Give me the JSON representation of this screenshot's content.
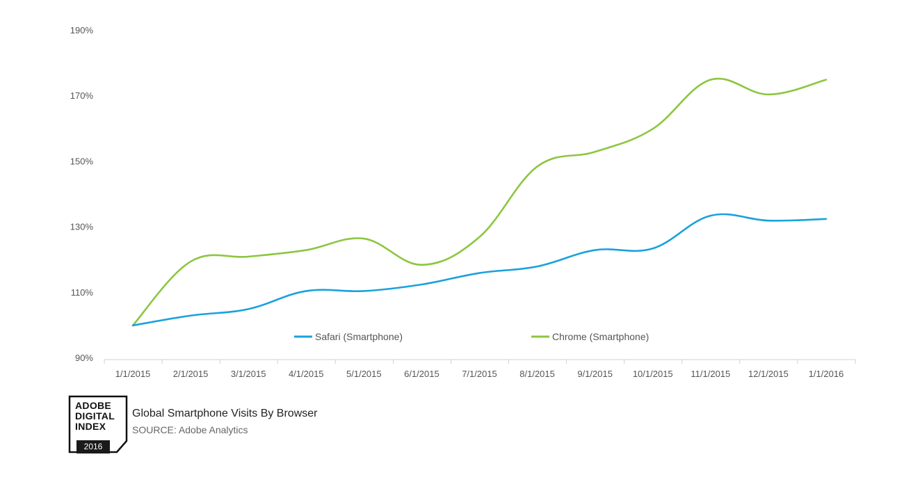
{
  "chart_data": {
    "type": "line",
    "categories": [
      "1/1/2015",
      "2/1/2015",
      "3/1/2015",
      "4/1/2015",
      "5/1/2015",
      "6/1/2015",
      "7/1/2015",
      "8/1/2015",
      "9/1/2015",
      "10/1/2015",
      "11/1/2015",
      "12/1/2015",
      "1/1/2016"
    ],
    "y_ticks": [
      "90%",
      "110%",
      "130%",
      "150%",
      "170%",
      "190%"
    ],
    "ylim": [
      90,
      190
    ],
    "y_unit": "%",
    "grid": false,
    "legend_position": "bottom-center",
    "series": [
      {
        "name": "Safari (Smartphone)",
        "color": "#1ba1dc",
        "values": [
          100,
          103,
          105,
          110.5,
          110.5,
          112.5,
          116,
          118,
          123,
          123.5,
          133.5,
          132,
          132.5
        ]
      },
      {
        "name": "Chrome (Smartphone)",
        "color": "#8cc63f",
        "values": [
          100,
          119.5,
          121,
          123,
          126.5,
          118.5,
          127,
          148.5,
          153,
          160,
          175,
          170.5,
          175
        ]
      }
    ]
  },
  "footer": {
    "badge_line1": "ADOBE",
    "badge_line2": "DIGITAL",
    "badge_line3": "INDEX",
    "badge_year": "2016",
    "title": "Global Smartphone Visits By Browser",
    "source": "SOURCE: Adobe Analytics"
  }
}
